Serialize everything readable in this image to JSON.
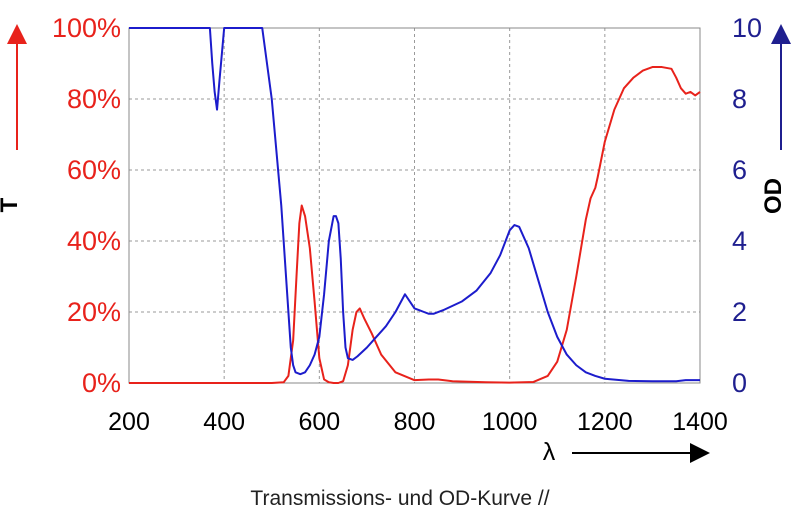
{
  "chart_data": {
    "type": "line",
    "title": "",
    "caption": "Transmissions- und OD-Kurve //",
    "xlabel": "λ",
    "xlim": [
      200,
      1400
    ],
    "xticks": [
      "200",
      "400",
      "600",
      "800",
      "1000",
      "1200",
      "1400"
    ],
    "xtick_values": [
      200,
      400,
      600,
      800,
      1000,
      1200,
      1400
    ],
    "y_left": {
      "label": "T",
      "lim": [
        0,
        100
      ],
      "ticks": [
        "0%",
        "20%",
        "40%",
        "60%",
        "80%",
        "100%"
      ],
      "tick_values": [
        0,
        20,
        40,
        60,
        80,
        100
      ],
      "color": "#e8221b"
    },
    "y_right": {
      "label": "OD",
      "lim": [
        0,
        10
      ],
      "ticks": [
        "0",
        "2",
        "4",
        "6",
        "8",
        "10"
      ],
      "tick_values": [
        0,
        2,
        4,
        6,
        8,
        10
      ],
      "color": "#1f1f8f"
    },
    "grid": true,
    "series": [
      {
        "name": "T",
        "axis": "left",
        "color": "#e8221b",
        "x": [
          200,
          500,
          525,
          535,
          545,
          552,
          558,
          563,
          570,
          580,
          590,
          600,
          610,
          620,
          630,
          640,
          650,
          660,
          670,
          678,
          685,
          695,
          710,
          730,
          760,
          800,
          830,
          850,
          880,
          950,
          1000,
          1050,
          1080,
          1100,
          1120,
          1140,
          1160,
          1170,
          1180,
          1185,
          1200,
          1220,
          1240,
          1260,
          1280,
          1300,
          1320,
          1340,
          1350,
          1360,
          1370,
          1380,
          1390,
          1400
        ],
        "y": [
          0,
          0,
          0.2,
          2,
          12,
          30,
          45,
          50,
          47,
          38,
          23,
          7,
          1,
          0.2,
          0,
          0,
          0.5,
          5,
          15,
          20,
          21,
          18,
          14,
          8,
          3,
          0.8,
          1,
          1,
          0.5,
          0.2,
          0.1,
          0.3,
          2,
          6,
          15,
          30,
          46,
          52,
          55,
          58,
          68,
          77,
          83,
          86,
          88,
          89,
          89,
          88.5,
          86,
          83,
          81.5,
          82,
          81,
          82
        ]
      },
      {
        "name": "OD",
        "axis": "right",
        "color": "#1c1ccc",
        "x": [
          200,
          370,
          375,
          380,
          385,
          390,
          400,
          405,
          415,
          470,
          480,
          500,
          510,
          520,
          530,
          540,
          545,
          550,
          560,
          570,
          580,
          590,
          600,
          610,
          620,
          630,
          635,
          640,
          645,
          650,
          655,
          660,
          670,
          680,
          700,
          720,
          740,
          760,
          780,
          800,
          810,
          820,
          830,
          840,
          860,
          900,
          930,
          960,
          980,
          1000,
          1010,
          1020,
          1040,
          1060,
          1080,
          1100,
          1120,
          1140,
          1160,
          1180,
          1200,
          1250,
          1300,
          1350,
          1370,
          1390,
          1400
        ],
        "y": [
          10,
          10,
          9,
          8.2,
          7.7,
          8.5,
          10,
          10,
          10,
          10,
          10,
          8,
          6.5,
          5,
          3,
          1,
          0.5,
          0.3,
          0.25,
          0.3,
          0.5,
          0.8,
          1.3,
          2.5,
          4,
          4.7,
          4.7,
          4.5,
          3.5,
          2,
          1,
          0.7,
          0.65,
          0.75,
          1,
          1.3,
          1.6,
          2,
          2.5,
          2.1,
          2.05,
          2,
          1.95,
          1.95,
          2.05,
          2.3,
          2.6,
          3.1,
          3.6,
          4.3,
          4.45,
          4.4,
          3.8,
          2.9,
          2,
          1.3,
          0.8,
          0.5,
          0.3,
          0.2,
          0.12,
          0.06,
          0.05,
          0.05,
          0.08,
          0.08,
          0.08
        ]
      }
    ]
  }
}
